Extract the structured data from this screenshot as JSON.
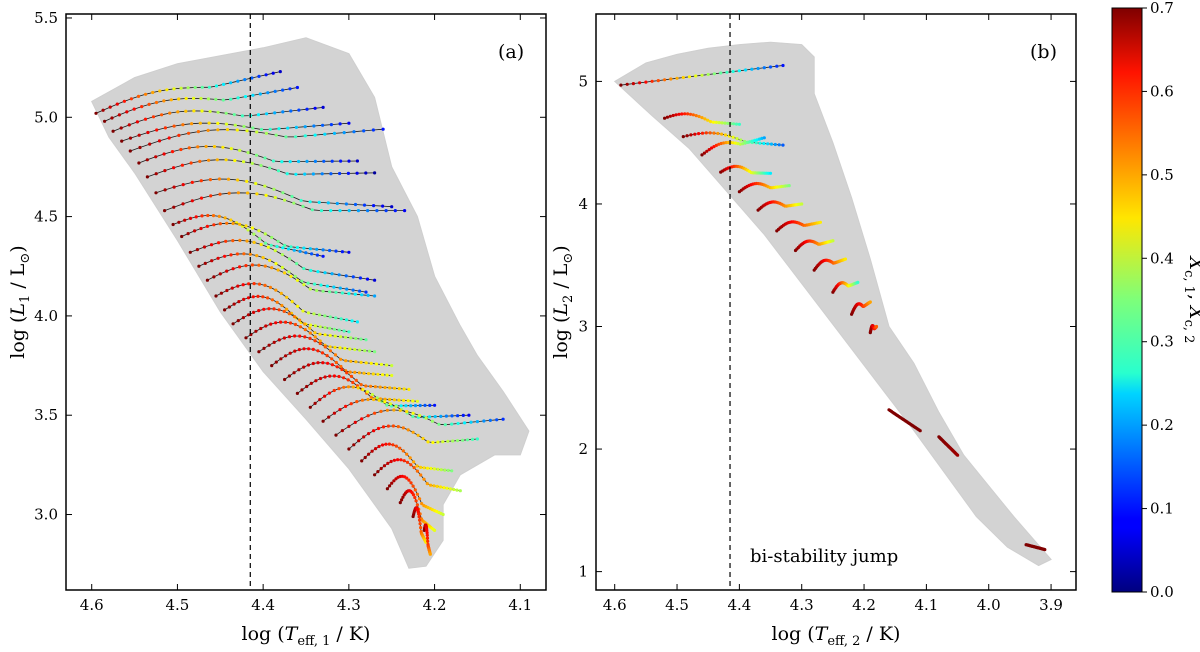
{
  "chart_data": [
    {
      "type": "scatter",
      "panel": "(a)",
      "xlabel": "log (T_eff,1 / K)",
      "ylabel": "log (L_1 / L_⊙)",
      "xlim": [
        4.63,
        4.07
      ],
      "ylim": [
        2.62,
        5.52
      ],
      "x_ticks": [
        4.6,
        4.5,
        4.4,
        4.3,
        4.2,
        4.1
      ],
      "x_tick_labels": [
        "4.6",
        "4.5",
        "4.4",
        "4.3",
        "4.2",
        "4.1"
      ],
      "y_ticks": [
        3.0,
        3.5,
        4.0,
        4.5,
        5.0,
        5.5
      ],
      "y_tick_labels": [
        "3.0",
        "3.5",
        "4.0",
        "4.5",
        "5.0",
        "5.5"
      ],
      "vline_x": 4.415,
      "envelope": [
        [
          4.6,
          5.08
        ],
        [
          4.55,
          5.2
        ],
        [
          4.5,
          5.27
        ],
        [
          4.45,
          5.31
        ],
        [
          4.4,
          5.35
        ],
        [
          4.35,
          5.4
        ],
        [
          4.3,
          5.32
        ],
        [
          4.27,
          5.1
        ],
        [
          4.25,
          4.75
        ],
        [
          4.22,
          4.5
        ],
        [
          4.2,
          4.2
        ],
        [
          4.17,
          3.95
        ],
        [
          4.15,
          3.8
        ],
        [
          4.12,
          3.62
        ],
        [
          4.09,
          3.42
        ],
        [
          4.1,
          3.3
        ],
        [
          4.13,
          3.3
        ],
        [
          4.17,
          3.2
        ],
        [
          4.19,
          3.05
        ],
        [
          4.19,
          2.87
        ],
        [
          4.21,
          2.74
        ],
        [
          4.23,
          2.73
        ],
        [
          4.25,
          2.93
        ],
        [
          4.3,
          3.23
        ],
        [
          4.35,
          3.48
        ],
        [
          4.4,
          3.72
        ],
        [
          4.45,
          4.02
        ],
        [
          4.5,
          4.38
        ],
        [
          4.55,
          4.72
        ],
        [
          4.58,
          4.9
        ],
        [
          4.6,
          5.08
        ]
      ],
      "tracks": [
        {
          "x0": 4.595,
          "y0": 5.02,
          "x1": 4.38,
          "y1": 5.23,
          "d": 0.04,
          "c": 0.05
        },
        {
          "x0": 4.585,
          "y0": 4.98,
          "x1": 4.36,
          "y1": 5.15,
          "d": 0.05,
          "c": 0.1
        },
        {
          "x0": 4.575,
          "y0": 4.93,
          "x1": 4.33,
          "y1": 5.05,
          "d": 0.06,
          "c": 0.06
        },
        {
          "x0": 4.565,
          "y0": 4.88,
          "x1": 4.3,
          "y1": 4.97,
          "d": 0.06,
          "c": 0.08
        },
        {
          "x0": 4.555,
          "y0": 4.83,
          "x1": 4.26,
          "y1": 4.94,
          "d": 0.07,
          "c": 0.1
        },
        {
          "x0": 4.545,
          "y0": 4.77,
          "x1": 4.29,
          "y1": 4.78,
          "d": 0.08,
          "c": 0.05
        },
        {
          "x0": 4.535,
          "y0": 4.7,
          "x1": 4.27,
          "y1": 4.72,
          "d": 0.08,
          "c": 0.02
        },
        {
          "x0": 4.525,
          "y0": 4.62,
          "x1": 4.25,
          "y1": 4.55,
          "d": 0.09,
          "c": 0.05
        },
        {
          "x0": 4.515,
          "y0": 4.53,
          "x1": 4.235,
          "y1": 4.53,
          "d": 0.09,
          "c": 0.08
        },
        {
          "x0": 4.505,
          "y0": 4.46,
          "x1": 4.33,
          "y1": 4.3,
          "d": 0.09,
          "c": 0.1
        },
        {
          "x0": 4.495,
          "y0": 4.4,
          "x1": 4.3,
          "y1": 4.32,
          "d": 0.09,
          "c": 0.08
        },
        {
          "x0": 4.485,
          "y0": 4.32,
          "x1": 4.27,
          "y1": 4.18,
          "d": 0.1,
          "c": 0.06
        },
        {
          "x0": 4.475,
          "y0": 4.25,
          "x1": 4.28,
          "y1": 4.12,
          "d": 0.1,
          "c": 0.12
        },
        {
          "x0": 4.465,
          "y0": 4.18,
          "x1": 4.27,
          "y1": 4.1,
          "d": 0.1,
          "c": 0.2
        },
        {
          "x0": 4.455,
          "y0": 4.1,
          "x1": 4.29,
          "y1": 3.97,
          "d": 0.1,
          "c": 0.25
        },
        {
          "x0": 4.445,
          "y0": 4.03,
          "x1": 4.3,
          "y1": 3.92,
          "d": 0.1,
          "c": 0.3
        },
        {
          "x0": 4.435,
          "y0": 3.96,
          "x1": 4.28,
          "y1": 3.88,
          "d": 0.1,
          "c": 0.33
        },
        {
          "x0": 4.42,
          "y0": 3.89,
          "x1": 4.27,
          "y1": 3.82,
          "d": 0.1,
          "c": 0.35
        },
        {
          "x0": 4.405,
          "y0": 3.82,
          "x1": 4.25,
          "y1": 3.75,
          "d": 0.1,
          "c": 0.4
        },
        {
          "x0": 4.39,
          "y0": 3.75,
          "x1": 4.25,
          "y1": 3.7,
          "d": 0.1,
          "c": 0.42
        },
        {
          "x0": 4.375,
          "y0": 3.68,
          "x1": 4.23,
          "y1": 3.63,
          "d": 0.1,
          "c": 0.45
        },
        {
          "x0": 4.36,
          "y0": 3.61,
          "x1": 4.22,
          "y1": 3.57,
          "d": 0.1,
          "c": 0.42
        },
        {
          "x0": 4.345,
          "y0": 3.54,
          "x1": 4.2,
          "y1": 3.55,
          "d": 0.1,
          "c": 0.1
        },
        {
          "x0": 4.33,
          "y0": 3.47,
          "x1": 4.16,
          "y1": 3.5,
          "d": 0.1,
          "c": 0.08
        },
        {
          "x0": 4.315,
          "y0": 3.4,
          "x1": 4.12,
          "y1": 3.48,
          "d": 0.1,
          "c": 0.12
        },
        {
          "x0": 4.3,
          "y0": 3.33,
          "x1": 4.15,
          "y1": 3.38,
          "d": 0.1,
          "c": 0.3
        },
        {
          "x0": 4.285,
          "y0": 3.27,
          "x1": 4.18,
          "y1": 3.22,
          "d": 0.1,
          "c": 0.35
        },
        {
          "x0": 4.27,
          "y0": 3.2,
          "x1": 4.17,
          "y1": 3.12,
          "d": 0.1,
          "c": 0.38
        },
        {
          "x0": 4.255,
          "y0": 3.13,
          "x1": 4.19,
          "y1": 3.0,
          "d": 0.1,
          "c": 0.4
        },
        {
          "x0": 4.24,
          "y0": 3.06,
          "x1": 4.2,
          "y1": 2.92,
          "d": 0.1,
          "c": 0.42
        },
        {
          "x0": 4.225,
          "y0": 2.99,
          "x1": 4.21,
          "y1": 2.86,
          "d": 0.08,
          "c": 0.45
        },
        {
          "x0": 4.212,
          "y0": 2.92,
          "x1": 4.205,
          "y1": 2.8,
          "d": 0.06,
          "c": 0.5
        }
      ]
    },
    {
      "type": "scatter",
      "panel": "(b)",
      "xlabel": "log (T_eff,2 / K)",
      "ylabel": "log (L_2 / L_⊙)",
      "xlim": [
        4.63,
        3.86
      ],
      "ylim": [
        0.85,
        5.55
      ],
      "x_ticks": [
        4.6,
        4.5,
        4.4,
        4.3,
        4.2,
        4.1,
        4.0,
        3.9
      ],
      "x_tick_labels": [
        "4.6",
        "4.5",
        "4.4",
        "4.3",
        "4.2",
        "4.1",
        "4.0",
        "3.9"
      ],
      "y_ticks": [
        1,
        2,
        3,
        4,
        5
      ],
      "y_tick_labels": [
        "1",
        "2",
        "3",
        "4",
        "5"
      ],
      "vline_x": 4.415,
      "annotation": "bi-stability jump",
      "envelope": [
        [
          4.6,
          5.0
        ],
        [
          4.55,
          5.15
        ],
        [
          4.5,
          5.22
        ],
        [
          4.45,
          5.27
        ],
        [
          4.4,
          5.3
        ],
        [
          4.35,
          5.32
        ],
        [
          4.3,
          5.3
        ],
        [
          4.28,
          5.2
        ],
        [
          4.28,
          4.9
        ],
        [
          4.25,
          4.5
        ],
        [
          4.22,
          4.05
        ],
        [
          4.19,
          3.55
        ],
        [
          4.16,
          3.0
        ],
        [
          4.12,
          2.7
        ],
        [
          4.08,
          2.3
        ],
        [
          4.04,
          1.95
        ],
        [
          4.0,
          1.7
        ],
        [
          3.96,
          1.45
        ],
        [
          3.9,
          1.1
        ],
        [
          3.92,
          1.05
        ],
        [
          3.97,
          1.2
        ],
        [
          4.02,
          1.45
        ],
        [
          4.07,
          1.8
        ],
        [
          4.12,
          2.15
        ],
        [
          4.18,
          2.55
        ],
        [
          4.24,
          2.95
        ],
        [
          4.3,
          3.35
        ],
        [
          4.36,
          3.75
        ],
        [
          4.42,
          4.1
        ],
        [
          4.48,
          4.45
        ],
        [
          4.54,
          4.72
        ],
        [
          4.6,
          5.0
        ]
      ],
      "tracks": [
        {
          "x0": 4.59,
          "y0": 4.97,
          "x1": 4.33,
          "y1": 5.13,
          "d": 0.0,
          "c": 0.1
        },
        {
          "x0": 4.52,
          "y0": 4.7,
          "x1": 4.4,
          "y1": 4.65,
          "d": 0.05,
          "c": 0.3
        },
        {
          "x0": 4.49,
          "y0": 4.55,
          "x1": 4.33,
          "y1": 4.48,
          "d": 0.05,
          "c": 0.15
        },
        {
          "x0": 4.46,
          "y0": 4.4,
          "x1": 4.36,
          "y1": 4.54,
          "d": 0.05,
          "c": 0.2
        },
        {
          "x0": 4.43,
          "y0": 4.26,
          "x1": 4.35,
          "y1": 4.25,
          "d": 0.05,
          "c": 0.25
        },
        {
          "x0": 4.4,
          "y0": 4.1,
          "x1": 4.32,
          "y1": 4.15,
          "d": 0.05,
          "c": 0.35
        },
        {
          "x0": 4.37,
          "y0": 3.95,
          "x1": 4.3,
          "y1": 4.0,
          "d": 0.05,
          "c": 0.4
        },
        {
          "x0": 4.34,
          "y0": 3.78,
          "x1": 4.27,
          "y1": 3.85,
          "d": 0.05,
          "c": 0.45
        },
        {
          "x0": 4.31,
          "y0": 3.62,
          "x1": 4.25,
          "y1": 3.7,
          "d": 0.05,
          "c": 0.4
        },
        {
          "x0": 4.28,
          "y0": 3.46,
          "x1": 4.23,
          "y1": 3.55,
          "d": 0.05,
          "c": 0.45
        },
        {
          "x0": 4.25,
          "y0": 3.28,
          "x1": 4.21,
          "y1": 3.36,
          "d": 0.05,
          "c": 0.3
        },
        {
          "x0": 4.22,
          "y0": 3.1,
          "x1": 4.19,
          "y1": 3.2,
          "d": 0.05,
          "c": 0.5
        },
        {
          "x0": 4.19,
          "y0": 2.95,
          "x1": 4.18,
          "y1": 3.0,
          "d": 0.04,
          "c": 0.55
        },
        {
          "x0": 4.16,
          "y0": 2.32,
          "x1": 4.11,
          "y1": 2.15,
          "d": 0.0,
          "c": 0.7
        },
        {
          "x0": 4.08,
          "y0": 2.1,
          "x1": 4.05,
          "y1": 1.95,
          "d": 0.0,
          "c": 0.68
        },
        {
          "x0": 3.94,
          "y0": 1.22,
          "x1": 3.91,
          "y1": 1.18,
          "d": 0.0,
          "c": 0.7
        }
      ]
    }
  ],
  "colorbar": {
    "label": "X_c,1 , X_c,2",
    "min": 0.0,
    "max": 0.7,
    "ticks": [
      0.0,
      0.1,
      0.2,
      0.3,
      0.4,
      0.5,
      0.6,
      0.7
    ],
    "tick_labels": [
      "0.0",
      "0.1",
      "0.2",
      "0.3",
      "0.4",
      "0.5",
      "0.6",
      "0.7"
    ]
  },
  "colors": {
    "envelope": "#d3d3d3",
    "vline": "#000000",
    "frame": "#000000"
  }
}
